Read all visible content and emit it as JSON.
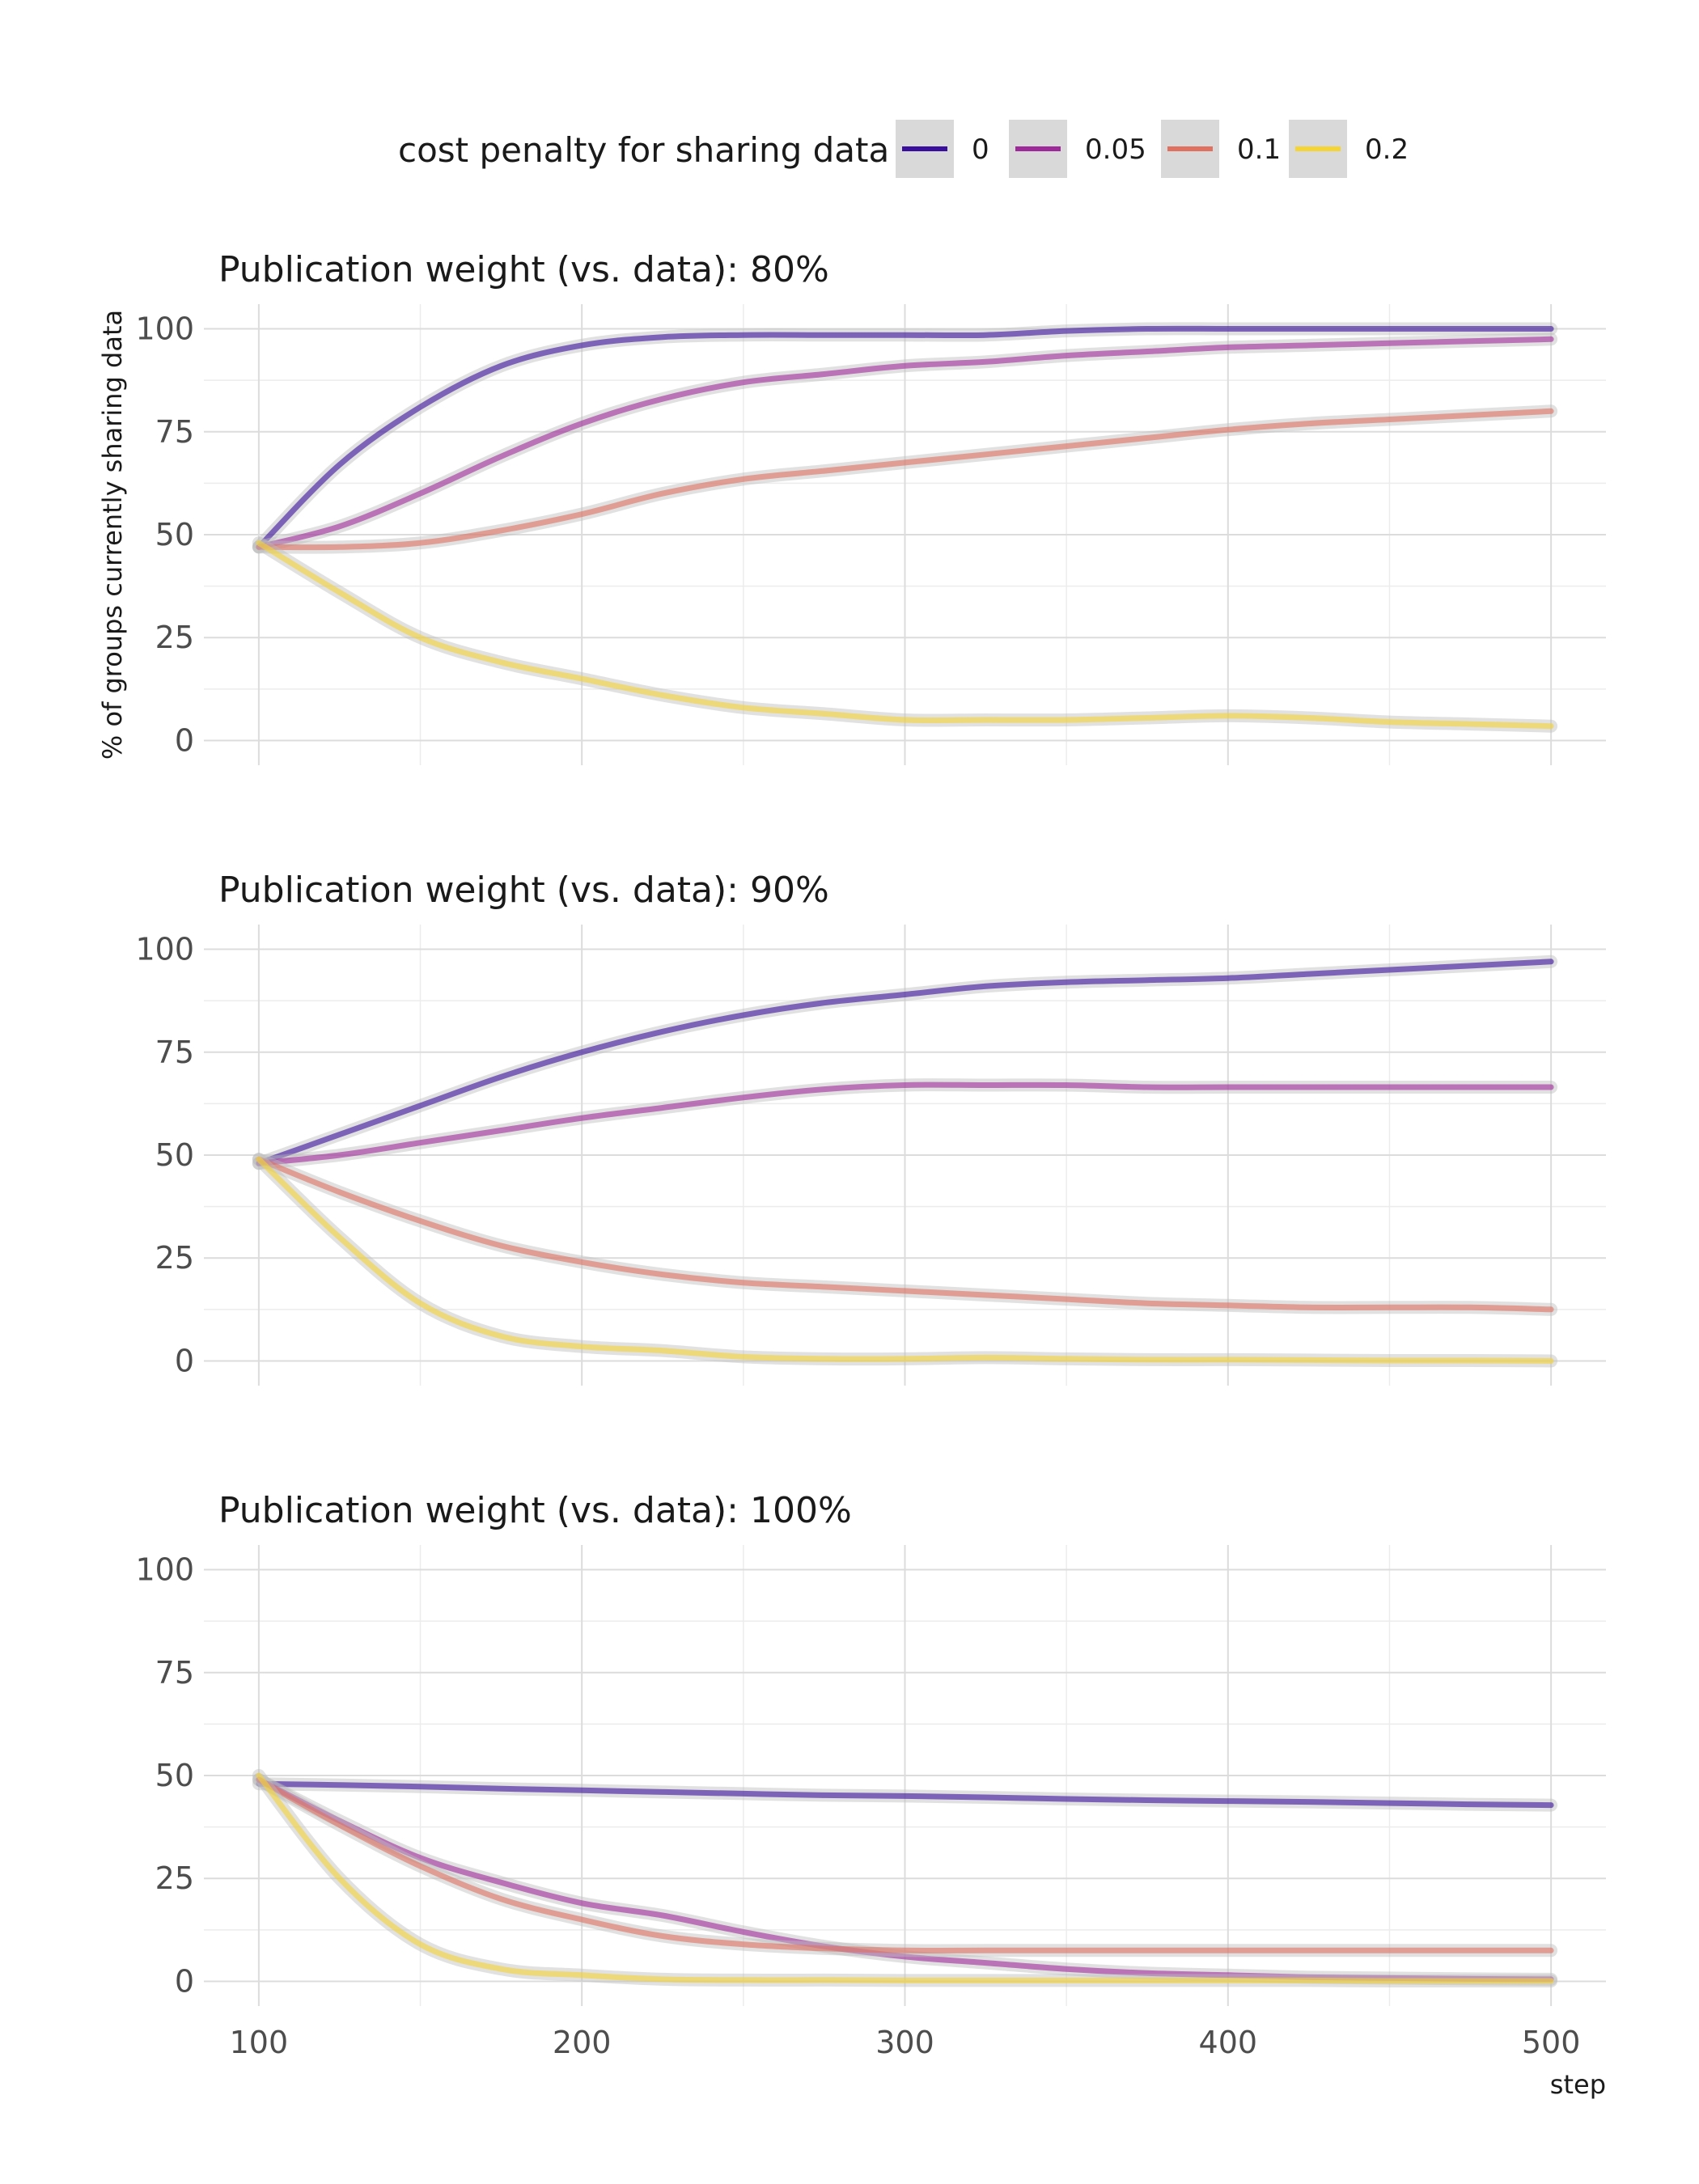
{
  "chart_data": {
    "type": "line",
    "legend": {
      "title": "cost penalty for sharing data",
      "position": "top",
      "entries": [
        {
          "label": "0",
          "color": "#3b0f9d"
        },
        {
          "label": "0.05",
          "color": "#9e2a9a"
        },
        {
          "label": "0.1",
          "color": "#e0705f"
        },
        {
          "label": "0.2",
          "color": "#f5d436"
        }
      ]
    },
    "xlabel": "step",
    "ylabel": "% of groups currently sharing data",
    "xlim": [
      100,
      500
    ],
    "ylim": [
      0,
      100
    ],
    "x_ticks": [
      100,
      200,
      300,
      400,
      500
    ],
    "y_ticks": [
      0,
      25,
      50,
      75,
      100
    ],
    "grid": true,
    "x": [
      100,
      125,
      150,
      175,
      200,
      225,
      250,
      275,
      300,
      325,
      350,
      375,
      400,
      425,
      450,
      475,
      500
    ],
    "panels": [
      {
        "title": "Publication weight (vs. data): 80%",
        "series": [
          {
            "name": "0",
            "values": [
              47,
              67,
              81,
              91,
              96,
              98,
              98.5,
              98.5,
              98.5,
              98.5,
              99.5,
              100,
              100,
              100,
              100,
              100,
              100
            ]
          },
          {
            "name": "0.05",
            "values": [
              47,
              52,
              60,
              69,
              77,
              83,
              87,
              89,
              91,
              92,
              93.5,
              94.5,
              95.5,
              96,
              96.5,
              97,
              97.5
            ]
          },
          {
            "name": "0.1",
            "values": [
              47,
              47,
              48,
              51,
              55,
              60,
              63.5,
              65.5,
              67.5,
              69.5,
              71.5,
              73.5,
              75.5,
              77,
              78,
              79,
              80
            ]
          },
          {
            "name": "0.2",
            "values": [
              48,
              36,
              25,
              19,
              15,
              11,
              8,
              6.5,
              5,
              5,
              5,
              5.5,
              6,
              5.5,
              4.5,
              4,
              3.5
            ]
          }
        ]
      },
      {
        "title": "Publication weight (vs. data): 90%",
        "series": [
          {
            "name": "0",
            "values": [
              48,
              55,
              62,
              69,
              75,
              80,
              84,
              87,
              89,
              91,
              92,
              92.5,
              93,
              94,
              95,
              96,
              97
            ]
          },
          {
            "name": "0.05",
            "values": [
              48,
              50,
              53,
              56,
              59,
              61.5,
              64,
              66,
              67,
              67,
              67,
              66.5,
              66.5,
              66.5,
              66.5,
              66.5,
              66.5
            ]
          },
          {
            "name": "0.1",
            "values": [
              49,
              41,
              34,
              28,
              24,
              21,
              19,
              18,
              17,
              16,
              15,
              14,
              13.5,
              13,
              13,
              13,
              12.5
            ]
          },
          {
            "name": "0.2",
            "values": [
              49,
              30,
              14,
              6,
              3.5,
              2.5,
              1,
              0.5,
              0.5,
              0.8,
              0.5,
              0.3,
              0.3,
              0.2,
              0.1,
              0.1,
              0
            ]
          }
        ]
      },
      {
        "title": "Publication weight (vs. data): 100%",
        "series": [
          {
            "name": "0",
            "values": [
              48,
              47.7,
              47.3,
              46.8,
              46.4,
              46,
              45.6,
              45.2,
              45,
              44.7,
              44.3,
              44,
              43.8,
              43.6,
              43.3,
              43,
              42.8
            ]
          },
          {
            "name": "0.05",
            "values": [
              49,
              39,
              30,
              24,
              19,
              16,
              12,
              8.5,
              6,
              4.5,
              3,
              2,
              1.5,
              1,
              0.8,
              0.6,
              0.5
            ]
          },
          {
            "name": "0.1",
            "values": [
              49,
              38,
              28,
              20,
              15,
              11,
              9,
              8,
              7.5,
              7.5,
              7.5,
              7.5,
              7.5,
              7.5,
              7.5,
              7.5,
              7.5
            ]
          },
          {
            "name": "0.2",
            "values": [
              50,
              25,
              9,
              3,
              1.5,
              0.5,
              0.3,
              0.3,
              0.2,
              0.2,
              0.2,
              0.2,
              0.2,
              0.2,
              0.1,
              0.1,
              0.1
            ]
          }
        ]
      }
    ]
  }
}
